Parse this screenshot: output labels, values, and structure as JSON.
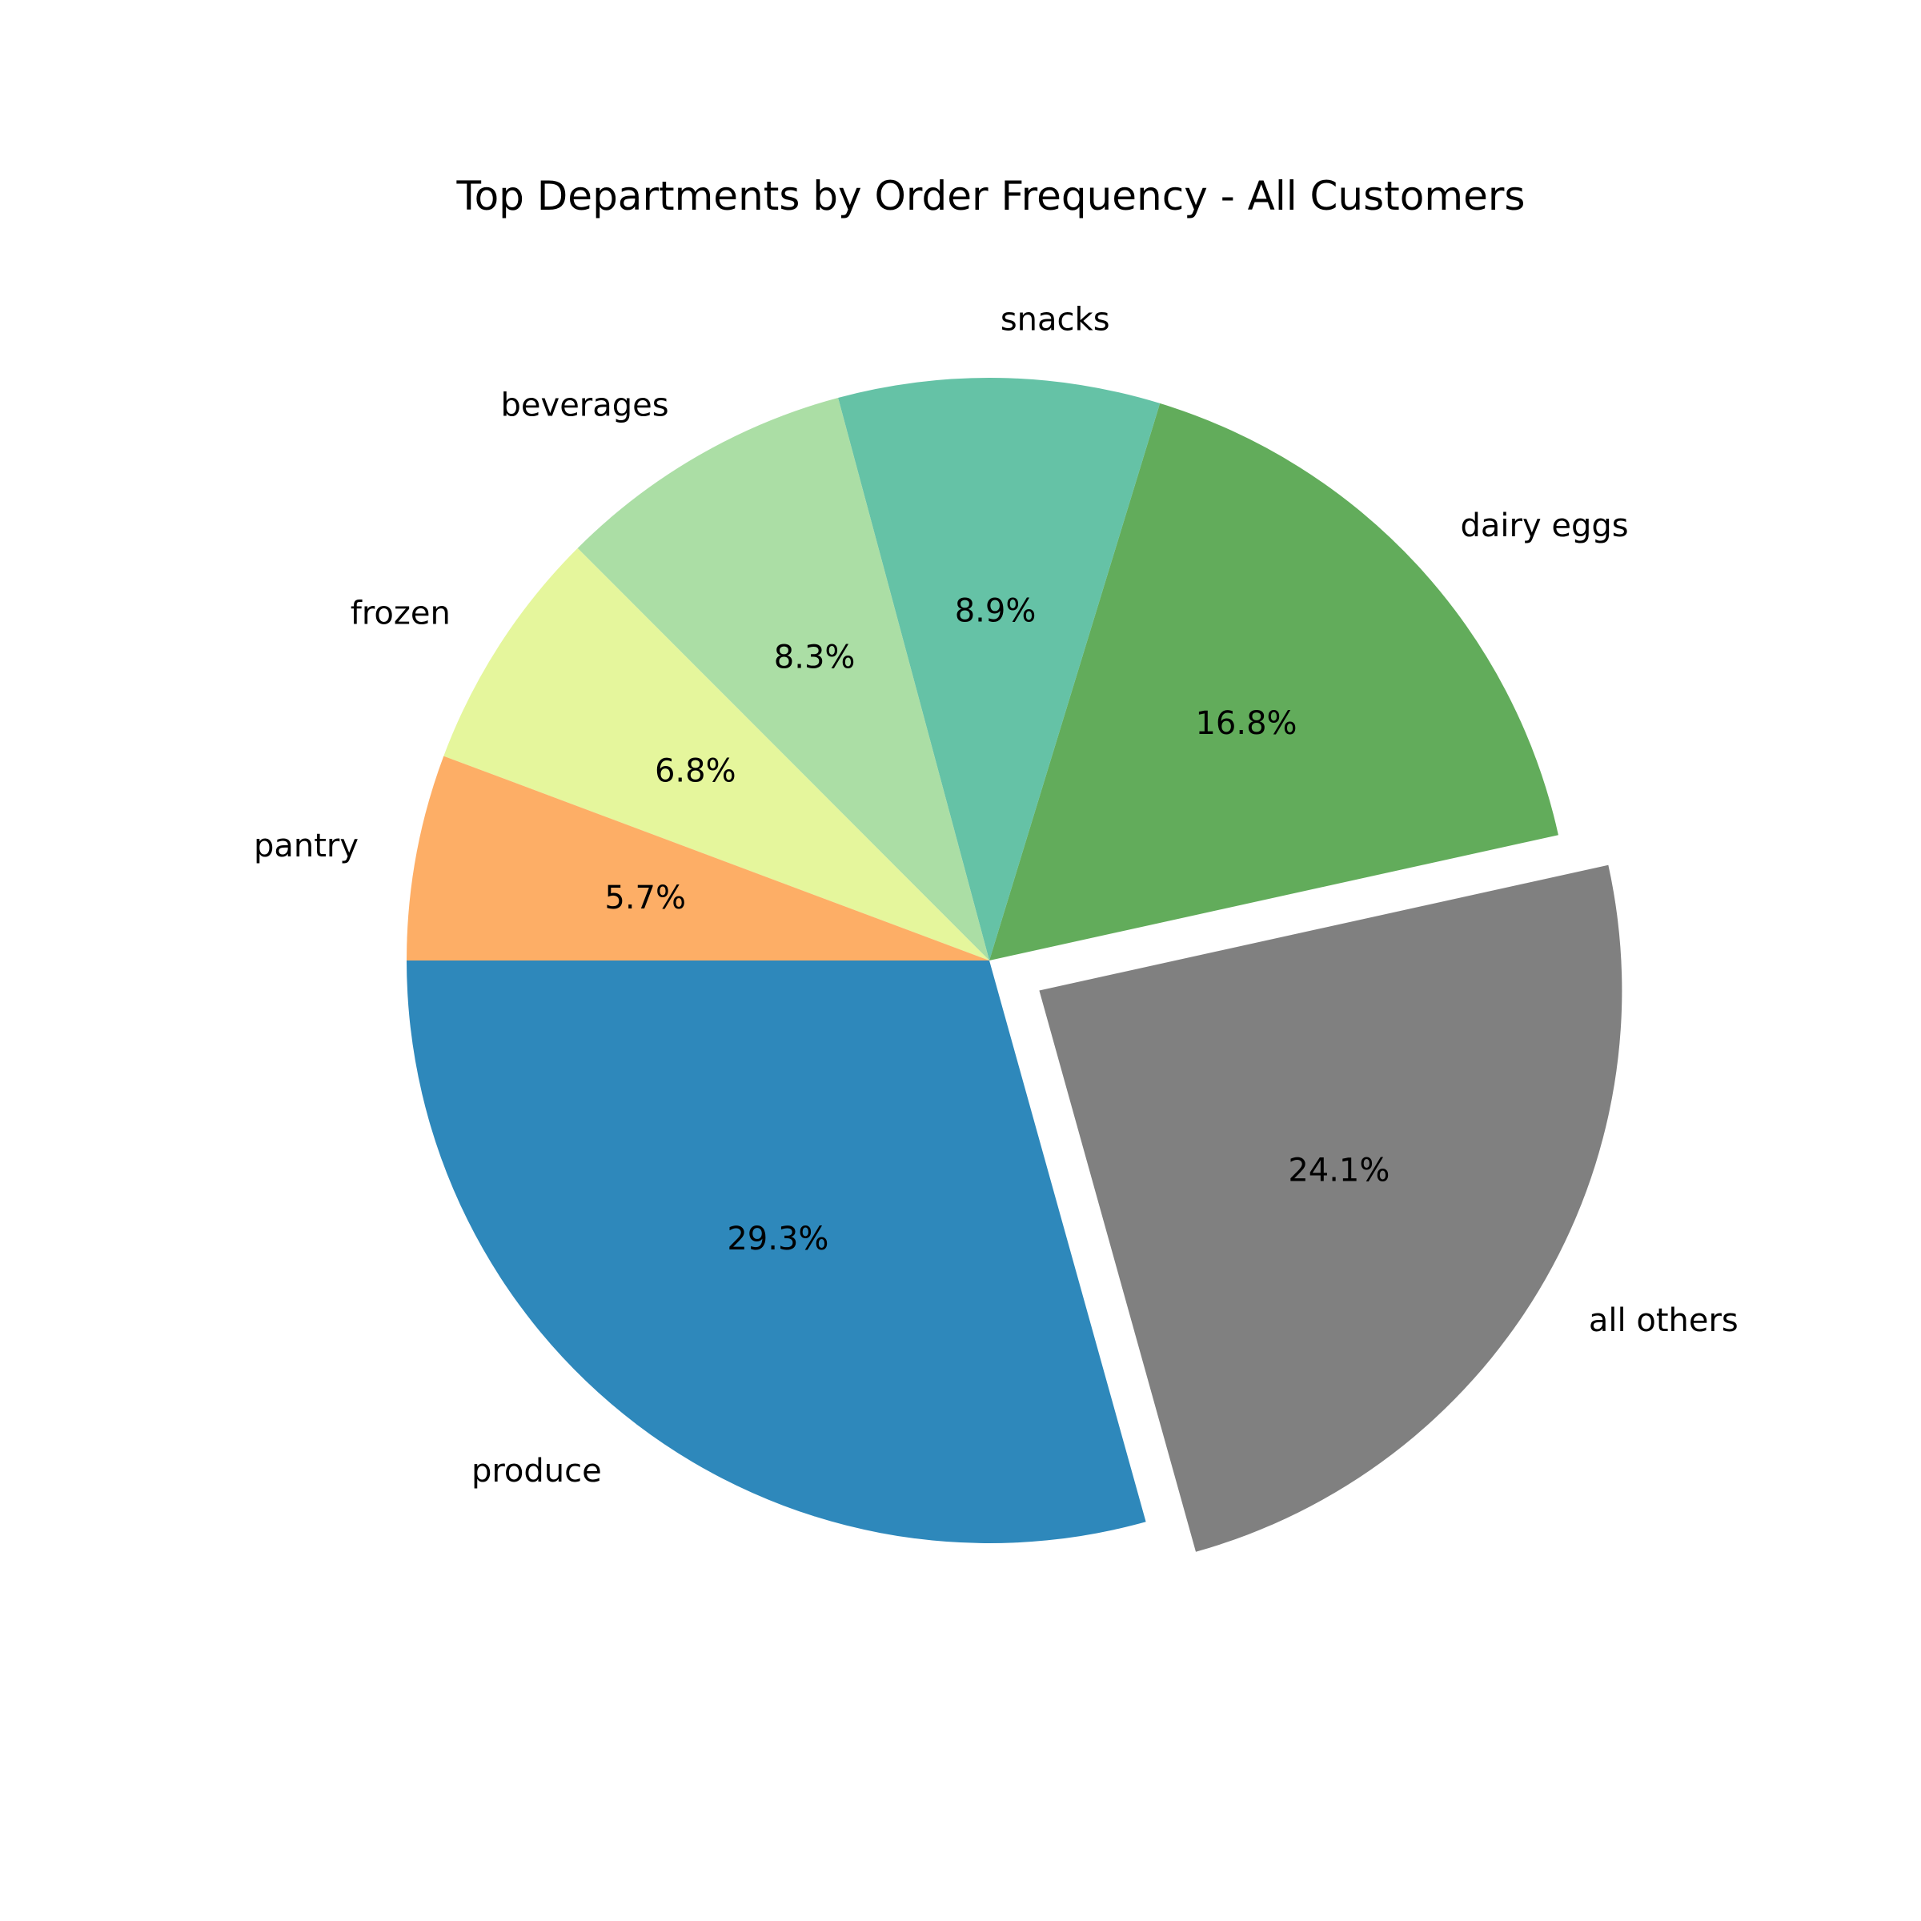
{
  "chart_data": {
    "type": "pie",
    "title": "Top Departments by Order Frequency - All Customers",
    "slices": [
      {
        "label": "produce",
        "value": 29.3,
        "pct_label": "29.3%",
        "color": "#2e88bb",
        "explode": 0
      },
      {
        "label": "all others",
        "value": 24.1,
        "pct_label": "24.1%",
        "color": "#808080",
        "explode": 0.1
      },
      {
        "label": "dairy eggs",
        "value": 16.8,
        "pct_label": "16.8%",
        "color": "#62ac5b",
        "explode": 0
      },
      {
        "label": "snacks",
        "value": 8.9,
        "pct_label": "8.9%",
        "color": "#65c2a6",
        "explode": 0
      },
      {
        "label": "beverages",
        "value": 8.3,
        "pct_label": "8.3%",
        "color": "#abdea5",
        "explode": 0
      },
      {
        "label": "frozen",
        "value": 6.8,
        "pct_label": "6.8%",
        "color": "#e5f69c",
        "explode": 0
      },
      {
        "label": "pantry",
        "value": 5.7,
        "pct_label": "5.7%",
        "color": "#fdae66",
        "explode": 0
      }
    ],
    "start_angle_deg": 180,
    "direction": "counterclockwise",
    "legend": "none"
  }
}
